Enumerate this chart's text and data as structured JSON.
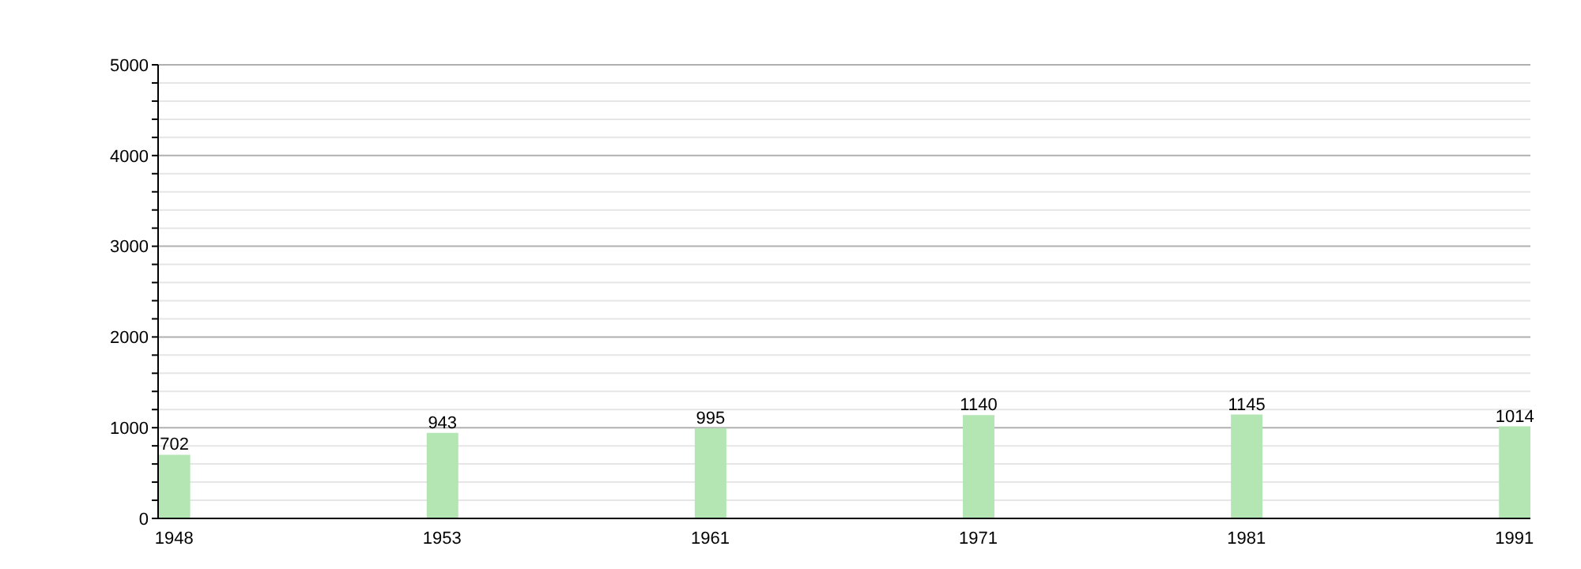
{
  "chart_data": {
    "type": "bar",
    "categories": [
      "1948",
      "1953",
      "1961",
      "1971",
      "1981",
      "1991"
    ],
    "values": [
      702,
      943,
      995,
      1140,
      1145,
      1014
    ],
    "color": "#b3e6b3",
    "data_labels": true,
    "ylim": [
      0,
      5000
    ],
    "yticks": [
      0,
      {
        "value": 200,
        "label": null
      },
      {
        "value": 400,
        "label": null
      },
      {
        "value": 600,
        "label": null
      },
      {
        "value": 800,
        "label": null
      },
      1000,
      {
        "value": 1200,
        "label": null
      },
      {
        "value": 1400,
        "label": null
      },
      {
        "value": 1600,
        "label": null
      },
      {
        "value": 1800,
        "label": null
      },
      2000,
      {
        "value": 2200,
        "label": null
      },
      {
        "value": 2400,
        "label": null
      },
      {
        "value": 2600,
        "label": null
      },
      {
        "value": 2800,
        "label": null
      },
      3000,
      {
        "value": 3200,
        "label": null
      },
      {
        "value": 3400,
        "label": null
      },
      {
        "value": 3600,
        "label": null
      },
      {
        "value": 3800,
        "label": null
      },
      4000,
      {
        "value": 4200,
        "label": null
      },
      {
        "value": 4400,
        "label": null
      },
      {
        "value": 4600,
        "label": null
      },
      {
        "value": 4800,
        "label": null
      },
      5000
    ],
    "grid": "y"
  }
}
